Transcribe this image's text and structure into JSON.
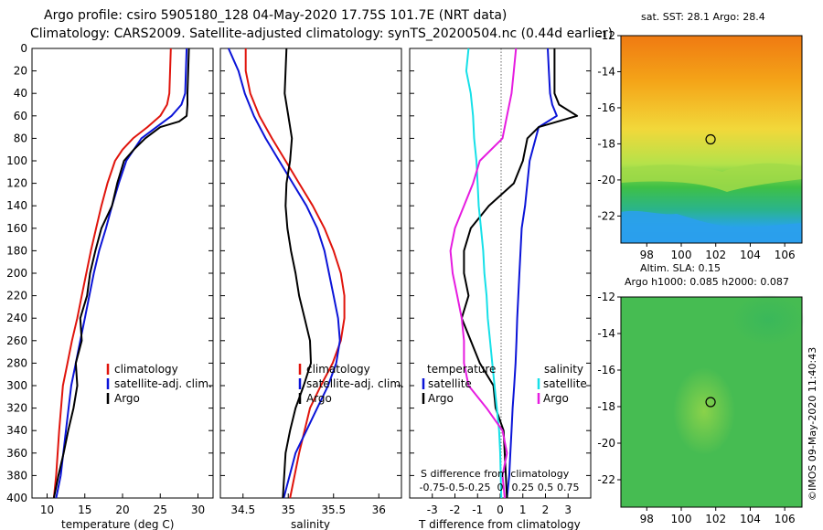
{
  "title": {
    "line1": "Argo profile: csiro 5905180_128 04-May-2020 17.75S 101.7E (NRT data)",
    "line2": "Climatology: CARS2009. Satellite-adjusted climatology: synTS_20200504.nc (0.44d earlier)"
  },
  "stamp": "©IMOS 09-May-2020 11:40:43",
  "colors": {
    "climatology": "#e0140c",
    "satellite": "#0b14d8",
    "argo": "#000000",
    "sat_salinity": "#16e0e8",
    "argo_salinity": "#e61ce0"
  },
  "chart_data": [
    {
      "type": "line",
      "name": "temperature",
      "xlabel": "temperature (deg C)",
      "ylabel": "",
      "xlim": [
        8,
        32
      ],
      "ylim": [
        400,
        0
      ],
      "xticks": [
        10,
        15,
        20,
        25,
        30
      ],
      "yticks": [
        0,
        20,
        40,
        60,
        80,
        100,
        120,
        140,
        160,
        180,
        200,
        220,
        240,
        260,
        280,
        300,
        320,
        340,
        360,
        380,
        400
      ],
      "legend": [
        "climatology",
        "satellite-adj. clim.",
        "Argo"
      ],
      "series": [
        {
          "name": "climatology",
          "color": "#e0140c",
          "x": [
            26.4,
            26.3,
            26.2,
            25.9,
            25,
            23.3,
            21.4,
            20,
            19,
            18,
            17.2,
            16.5,
            15.8,
            15.2,
            14.6,
            14,
            13.3,
            12.7,
            12.1,
            11.6,
            11.2,
            10.9
          ],
          "y": [
            0,
            20,
            40,
            50,
            60,
            70,
            80,
            90,
            100,
            120,
            140,
            160,
            180,
            200,
            220,
            240,
            260,
            280,
            300,
            340,
            380,
            400
          ]
        },
        {
          "name": "satellite-adj. clim.",
          "color": "#0b14d8",
          "x": [
            28.5,
            28.4,
            28.3,
            27.8,
            26.5,
            24.5,
            22.5,
            20.5,
            19.5,
            18.6,
            17.8,
            16.9,
            16.2,
            15.6,
            15,
            14.4,
            13.8,
            13.2,
            12.5,
            11.8,
            11.2
          ],
          "y": [
            0,
            20,
            40,
            50,
            60,
            70,
            80,
            100,
            120,
            140,
            160,
            180,
            200,
            220,
            240,
            260,
            280,
            300,
            340,
            380,
            400
          ]
        },
        {
          "name": "Argo",
          "color": "#000000",
          "x": [
            28.8,
            28.7,
            28.6,
            28.6,
            28.5,
            27.5,
            25,
            23,
            21.5,
            20.2,
            19.3,
            18.6,
            17.2,
            16.4,
            15.7,
            15.3,
            14.4,
            14.6,
            13.8,
            14,
            13.5,
            12.8,
            12.2,
            11.5,
            10.9
          ],
          "y": [
            0,
            20,
            40,
            50,
            60,
            65,
            70,
            80,
            90,
            100,
            120,
            140,
            160,
            180,
            200,
            220,
            240,
            260,
            280,
            300,
            320,
            340,
            360,
            380,
            400
          ]
        }
      ]
    },
    {
      "type": "line",
      "name": "salinity",
      "xlabel": "salinity",
      "ylabel": "",
      "xlim": [
        34.25,
        36.25
      ],
      "ylim": [
        400,
        0
      ],
      "xticks": [
        34.5,
        35,
        35.5,
        36
      ],
      "xticklabels": [
        "34.5",
        "35",
        "35.5",
        "36"
      ],
      "legend": [
        "climatology",
        "satellite-adj. clim.",
        "Argo"
      ],
      "series": [
        {
          "name": "climatology",
          "color": "#e0140c",
          "x": [
            34.53,
            34.53,
            34.58,
            34.68,
            34.82,
            34.97,
            35.12,
            35.27,
            35.4,
            35.5,
            35.58,
            35.62,
            35.62,
            35.58,
            35.49,
            35.36,
            35.24,
            35.12,
            35.02
          ],
          "y": [
            0,
            20,
            40,
            60,
            80,
            100,
            120,
            140,
            160,
            180,
            200,
            220,
            240,
            260,
            280,
            300,
            320,
            360,
            400
          ]
        },
        {
          "name": "satellite-adj. clim.",
          "color": "#0b14d8",
          "x": [
            34.34,
            34.45,
            34.52,
            34.62,
            34.75,
            34.9,
            35.05,
            35.2,
            35.32,
            35.4,
            35.45,
            35.5,
            35.55,
            35.57,
            35.53,
            35.44,
            35.32,
            35.2,
            35.08,
            34.95
          ],
          "y": [
            0,
            20,
            40,
            60,
            80,
            100,
            120,
            140,
            160,
            180,
            200,
            220,
            240,
            260,
            280,
            300,
            320,
            340,
            360,
            400
          ]
        },
        {
          "name": "Argo",
          "color": "#000000",
          "x": [
            34.98,
            34.97,
            34.96,
            35.0,
            35.04,
            35.02,
            34.98,
            34.97,
            34.99,
            35.03,
            35.08,
            35.12,
            35.18,
            35.24,
            35.25,
            35.17,
            35.08,
            35.02,
            34.97,
            34.94
          ],
          "y": [
            0,
            20,
            40,
            60,
            80,
            100,
            120,
            140,
            160,
            180,
            200,
            220,
            240,
            260,
            280,
            300,
            320,
            340,
            360,
            400
          ]
        }
      ]
    },
    {
      "type": "line",
      "name": "difference",
      "xlabel": "T difference from climatology",
      "xlabel_top": "S difference from climatology",
      "ylabel": "",
      "xlim": [
        -4,
        4
      ],
      "ylim": [
        400,
        0
      ],
      "xticks": [
        -3,
        -2,
        -1,
        0,
        1,
        2,
        3
      ],
      "xticklabels": [
        "-3",
        "-2",
        "-1",
        "0",
        "1",
        "2",
        "3"
      ],
      "s_ticklabels": [
        "-0.75",
        "-0.5",
        "-0.25",
        "0",
        "0.25",
        "0.5",
        "0.75"
      ],
      "legend_left_title": "temperature",
      "legend_right_title": "salinity",
      "legend": [
        "satellite",
        "Argo",
        "satellite",
        "Argo"
      ],
      "series": [
        {
          "name": "T satellite",
          "color": "#0b14d8",
          "x": [
            2.1,
            2.15,
            2.2,
            2.3,
            2.5,
            1.7,
            1.3,
            1.1,
            0.95,
            0.85,
            0.8,
            0.75,
            0.72,
            0.68,
            0.62,
            0.55,
            0.5,
            0.45,
            0.4,
            0.3
          ],
          "y": [
            0,
            20,
            40,
            50,
            60,
            70,
            100,
            140,
            160,
            200,
            220,
            240,
            260,
            280,
            300,
            320,
            340,
            360,
            380,
            400
          ]
        },
        {
          "name": "T Argo",
          "color": "#000000",
          "x": [
            2.4,
            2.4,
            2.4,
            2.6,
            3.4,
            1.7,
            1.2,
            1.0,
            0.6,
            -0.5,
            -1.3,
            -1.6,
            -1.6,
            -1.4,
            -1.7,
            -1.3,
            -0.9,
            -0.3,
            -0.2,
            0.15,
            0.3
          ],
          "y": [
            0,
            20,
            40,
            50,
            60,
            70,
            80,
            100,
            120,
            140,
            160,
            180,
            200,
            220,
            240,
            260,
            280,
            300,
            320,
            340,
            400
          ]
        },
        {
          "name": "S satellite",
          "color": "#16e0e8",
          "x": [
            -1.4,
            -1.5,
            -1.3,
            -1.2,
            -1.15,
            -1.05,
            -1.0,
            -0.95,
            -0.85,
            -0.75,
            -0.7,
            -0.6,
            -0.55,
            -0.45,
            -0.35,
            -0.25,
            -0.15,
            -0.05,
            0.0,
            0.05
          ],
          "y": [
            0,
            20,
            40,
            60,
            80,
            100,
            120,
            140,
            160,
            180,
            200,
            220,
            240,
            260,
            280,
            300,
            320,
            340,
            360,
            400
          ]
        },
        {
          "name": "S Argo",
          "color": "#e61ce0",
          "x": [
            0.7,
            0.6,
            0.5,
            0.3,
            0.1,
            -0.9,
            -1.2,
            -1.6,
            -2.0,
            -2.2,
            -2.1,
            -1.9,
            -1.7,
            -1.6,
            -1.6,
            -1.4,
            -0.6,
            0.1,
            0.3,
            0.1,
            0.2
          ],
          "y": [
            0,
            20,
            40,
            60,
            80,
            100,
            120,
            140,
            160,
            180,
            200,
            220,
            240,
            260,
            280,
            300,
            320,
            340,
            360,
            380,
            400
          ]
        }
      ]
    },
    {
      "type": "heatmap",
      "name": "sst",
      "title": "sat. SST: 28.1 Argo: 28.4",
      "xlim": [
        96.5,
        107
      ],
      "ylim": [
        -23.5,
        -12
      ],
      "xticks": [
        98,
        100,
        102,
        104,
        106
      ],
      "yticks": [
        -12,
        -14,
        -16,
        -18,
        -20,
        -22
      ],
      "marker": {
        "lon": 101.7,
        "lat": -17.75
      }
    },
    {
      "type": "heatmap",
      "name": "sla",
      "title_line1": "Altim. SLA: 0.15",
      "title_line2": "Argo h1000: 0.085 h2000: 0.087",
      "xlim": [
        96.5,
        107
      ],
      "ylim": [
        -23.5,
        -12
      ],
      "xticks": [
        98,
        100,
        102,
        104,
        106
      ],
      "yticks": [
        -12,
        -14,
        -16,
        -18,
        -20,
        -22
      ],
      "marker": {
        "lon": 101.7,
        "lat": -17.75
      }
    }
  ]
}
